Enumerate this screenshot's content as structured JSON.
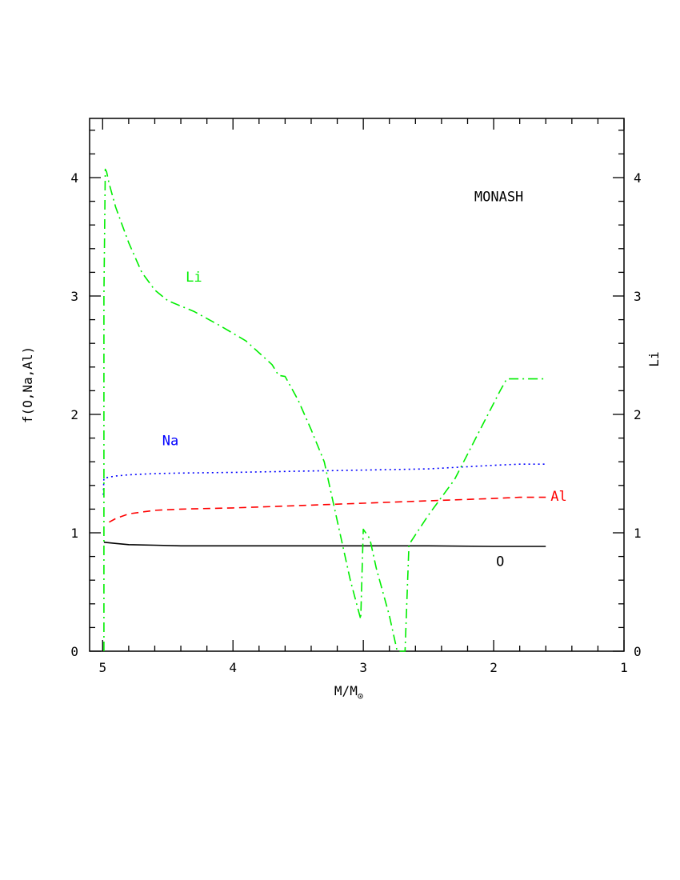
{
  "chart_data": {
    "type": "line",
    "title": "",
    "annotation": "MONASH",
    "xlabel": "M/M",
    "xlabel_sub": "⊙",
    "ylabel_left": "f(O,Na,Al)",
    "ylabel_right": "Li",
    "xlim": [
      5.1,
      1.0
    ],
    "ylim": [
      0,
      4.5
    ],
    "x_ticks": [
      5,
      4,
      3,
      2,
      1
    ],
    "y_ticks": [
      0,
      1,
      2,
      3,
      4
    ],
    "legend": "none",
    "series": [
      {
        "name": "O",
        "color": "#000000",
        "dash": "solid",
        "x": [
          4.99,
          4.9,
          4.8,
          4.6,
          4.4,
          4.0,
          3.5,
          3.0,
          2.5,
          2.0,
          1.6
        ],
        "y": [
          0.92,
          0.91,
          0.9,
          0.895,
          0.89,
          0.89,
          0.89,
          0.89,
          0.89,
          0.885,
          0.885
        ]
      },
      {
        "name": "Na",
        "color": "#0000ff",
        "dash": "dotted",
        "x": [
          4.995,
          4.99,
          4.95,
          4.9,
          4.8,
          4.6,
          4.4,
          4.0,
          3.5,
          3.0,
          2.5,
          2.0,
          1.8,
          1.6
        ],
        "y": [
          1.32,
          1.46,
          1.47,
          1.48,
          1.49,
          1.5,
          1.505,
          1.51,
          1.52,
          1.53,
          1.54,
          1.57,
          1.58,
          1.58
        ]
      },
      {
        "name": "Al",
        "color": "#ff0000",
        "dash": "dashed",
        "x": [
          4.95,
          4.9,
          4.8,
          4.6,
          4.4,
          4.0,
          3.5,
          3.0,
          2.5,
          2.0,
          1.8,
          1.6
        ],
        "y": [
          1.09,
          1.12,
          1.16,
          1.19,
          1.2,
          1.21,
          1.23,
          1.25,
          1.27,
          1.29,
          1.3,
          1.3
        ]
      },
      {
        "name": "Li",
        "color": "#00ee00",
        "dash": "dashdot",
        "x": [
          4.99,
          4.99,
          4.98,
          4.97,
          4.95,
          4.9,
          4.85,
          4.8,
          4.7,
          4.6,
          4.5,
          4.3,
          4.1,
          3.9,
          3.7,
          3.65,
          3.6,
          3.5,
          3.4,
          3.3,
          3.2,
          3.1,
          3.02,
          3.0,
          2.95,
          2.9,
          2.8,
          2.74,
          2.7,
          2.68,
          2.65,
          2.5,
          2.3,
          2.1,
          1.95,
          1.9,
          1.8,
          1.6
        ],
        "y": [
          0.0,
          3.0,
          4.07,
          4.05,
          3.95,
          3.75,
          3.6,
          3.45,
          3.2,
          3.05,
          2.96,
          2.87,
          2.75,
          2.62,
          2.42,
          2.33,
          2.32,
          2.12,
          1.87,
          1.6,
          1.1,
          0.6,
          0.27,
          1.03,
          0.95,
          0.7,
          0.3,
          0.0,
          0.0,
          0.0,
          0.9,
          1.15,
          1.45,
          1.88,
          2.2,
          2.3,
          2.3,
          2.3
        ]
      }
    ],
    "series_labels": [
      {
        "name": "Li",
        "text": "Li",
        "x": 4.3,
        "y": 3.12,
        "color": "#00ee00"
      },
      {
        "name": "Na",
        "text": "Na",
        "x": 4.48,
        "y": 1.74,
        "color": "#0000ff"
      },
      {
        "name": "Al",
        "text": "Al",
        "x": 1.5,
        "y": 1.27,
        "color": "#ff0000"
      },
      {
        "name": "O",
        "text": "O",
        "x": 1.95,
        "y": 0.72,
        "color": "#000000"
      }
    ],
    "annotation_pos": {
      "x": 1.96,
      "y": 3.8
    }
  }
}
